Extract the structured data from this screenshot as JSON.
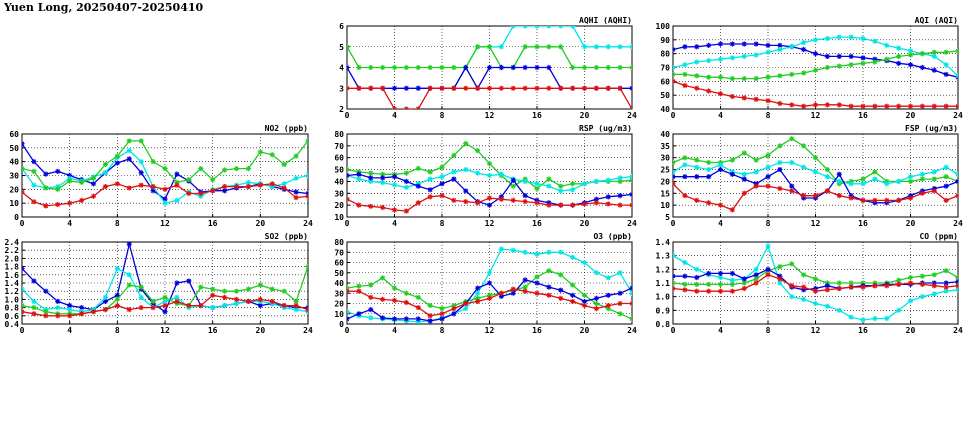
{
  "page": {
    "title": "Yuen Long, 20250407-20250410"
  },
  "colors": {
    "red": "#dd1111",
    "blue": "#0000dd",
    "cyan": "#00e5e5",
    "green": "#22cc22"
  },
  "chart_data": [
    {
      "id": "no2",
      "type": "line",
      "title": "NO2 (ppb)",
      "xlim": [
        0,
        24
      ],
      "ylim": [
        0,
        60
      ],
      "xticks": [
        0,
        4,
        8,
        12,
        16,
        20,
        24
      ],
      "yticks": [
        0,
        10,
        20,
        30,
        40,
        50,
        60
      ],
      "grid": true,
      "series": [
        {
          "color": "blue",
          "values": [
            53,
            40,
            31,
            33,
            30,
            27,
            24,
            32,
            39,
            42,
            32,
            19,
            13,
            31,
            26,
            18,
            19,
            19,
            21,
            22,
            24,
            22,
            20,
            18,
            17
          ]
        },
        {
          "color": "cyan",
          "values": [
            35,
            23,
            21,
            22,
            28,
            26,
            29,
            32,
            43,
            48,
            40,
            22,
            10,
            12,
            18,
            15,
            20,
            22,
            23,
            25,
            24,
            22,
            24,
            28,
            30
          ]
        },
        {
          "color": "green",
          "values": [
            35,
            33,
            21,
            20,
            26,
            25,
            28,
            38,
            44,
            55,
            55,
            40,
            35,
            25,
            27,
            35,
            27,
            34,
            35,
            35,
            47,
            45,
            38,
            44,
            55
          ]
        },
        {
          "color": "red",
          "values": [
            18,
            11,
            8,
            9,
            10,
            12,
            15,
            22,
            24,
            21,
            23,
            22,
            20,
            23,
            17,
            17,
            19,
            22,
            22,
            22,
            23,
            24,
            21,
            14,
            15
          ]
        }
      ]
    },
    {
      "id": "so2",
      "type": "line",
      "title": "SO2 (ppb)",
      "xlim": [
        0,
        24
      ],
      "ylim": [
        0.4,
        2.4
      ],
      "xticks": [
        0,
        4,
        8,
        12,
        16,
        20,
        24
      ],
      "yticks": [
        0.4,
        0.6,
        0.8,
        1.0,
        1.2,
        1.4,
        1.6,
        1.8,
        2.0,
        2.2,
        2.4
      ],
      "ytick_labels": [
        "0.4",
        "0.6",
        "0.8",
        "1.0",
        "1.2",
        "1.4",
        "1.6",
        "1.8",
        "2.0",
        "2.2",
        "2.4"
      ],
      "grid": true,
      "series": [
        {
          "color": "blue",
          "values": [
            1.75,
            1.45,
            1.2,
            0.95,
            0.85,
            0.8,
            0.75,
            0.95,
            1.1,
            2.35,
            1.25,
            0.9,
            0.7,
            1.4,
            1.45,
            0.85,
            0.8,
            0.85,
            0.9,
            0.95,
            0.85,
            0.9,
            0.85,
            0.8,
            0.8
          ]
        },
        {
          "color": "cyan",
          "values": [
            1.25,
            0.95,
            0.75,
            0.8,
            0.75,
            0.7,
            0.75,
            1.05,
            1.75,
            1.6,
            1.05,
            0.8,
            0.95,
            1.05,
            0.8,
            0.85,
            0.8,
            0.85,
            0.9,
            0.95,
            0.95,
            0.9,
            0.8,
            0.75,
            0.7
          ]
        },
        {
          "color": "green",
          "values": [
            0.85,
            0.8,
            0.7,
            0.65,
            0.65,
            0.65,
            0.7,
            0.75,
            1.0,
            1.35,
            1.3,
            0.95,
            1.05,
            0.9,
            0.85,
            1.3,
            1.25,
            1.2,
            1.2,
            1.25,
            1.35,
            1.25,
            1.2,
            0.95,
            1.8
          ]
        },
        {
          "color": "red",
          "values": [
            0.7,
            0.65,
            0.6,
            0.6,
            0.6,
            0.65,
            0.7,
            0.75,
            0.85,
            0.75,
            0.8,
            0.8,
            0.85,
            0.95,
            0.85,
            0.85,
            1.1,
            1.05,
            1.0,
            0.95,
            1.0,
            0.95,
            0.85,
            0.85,
            0.75
          ]
        }
      ]
    },
    {
      "id": "aqhi",
      "type": "line",
      "title": "AQHI (AQHI)",
      "xlim": [
        0,
        24
      ],
      "ylim": [
        2,
        6
      ],
      "xticks": [
        0,
        4,
        8,
        12,
        16,
        20,
        24
      ],
      "yticks": [
        2,
        3,
        4,
        5,
        6
      ],
      "grid": true,
      "series": [
        {
          "color": "cyan",
          "values": [
            null,
            null,
            null,
            null,
            null,
            null,
            3,
            3,
            3,
            3,
            4,
            5,
            5,
            5,
            6,
            6,
            6,
            6,
            6,
            6,
            5,
            5,
            5,
            5,
            5
          ]
        },
        {
          "color": "green",
          "values": [
            5,
            4,
            4,
            4,
            4,
            4,
            4,
            4,
            4,
            4,
            4,
            5,
            5,
            4,
            4,
            5,
            5,
            5,
            5,
            4,
            4,
            4,
            4,
            4,
            4
          ]
        },
        {
          "color": "blue",
          "values": [
            4,
            3,
            3,
            3,
            3,
            3,
            3,
            3,
            3,
            3,
            4,
            3,
            4,
            4,
            4,
            4,
            4,
            4,
            3,
            3,
            3,
            3,
            3,
            3,
            3
          ]
        },
        {
          "color": "red",
          "values": [
            3,
            3,
            3,
            3,
            2,
            2,
            2,
            3,
            3,
            3,
            3,
            3,
            3,
            3,
            3,
            3,
            3,
            3,
            3,
            3,
            3,
            3,
            3,
            3,
            2
          ]
        }
      ]
    },
    {
      "id": "rsp",
      "type": "line",
      "title": "RSP (ug/m3)",
      "xlim": [
        0,
        24
      ],
      "ylim": [
        10,
        80
      ],
      "xticks": [
        0,
        4,
        8,
        12,
        16,
        20,
        24
      ],
      "yticks": [
        10,
        20,
        30,
        40,
        50,
        60,
        70,
        80
      ],
      "grid": true,
      "series": [
        {
          "color": "green",
          "values": [
            50,
            48,
            47,
            46,
            46,
            47,
            51,
            48,
            52,
            62,
            72,
            66,
            55,
            45,
            36,
            42,
            34,
            42,
            36,
            38,
            38,
            40,
            40,
            40,
            41
          ]
        },
        {
          "color": "cyan",
          "values": [
            45,
            42,
            40,
            39,
            37,
            35,
            38,
            42,
            44,
            48,
            50,
            47,
            45,
            46,
            42,
            40,
            38,
            36,
            32,
            33,
            38,
            40,
            41,
            43,
            44
          ]
        },
        {
          "color": "blue",
          "values": [
            45,
            46,
            43,
            43,
            44,
            40,
            36,
            33,
            38,
            42,
            32,
            23,
            20,
            27,
            41,
            28,
            24,
            22,
            20,
            20,
            22,
            25,
            27,
            28,
            29
          ]
        },
        {
          "color": "red",
          "values": [
            25,
            20,
            19,
            18,
            16,
            15,
            22,
            27,
            28,
            24,
            23,
            22,
            26,
            25,
            24,
            23,
            22,
            20,
            20,
            20,
            21,
            22,
            21,
            20,
            20
          ]
        }
      ]
    },
    {
      "id": "o3",
      "type": "line",
      "title": "O3 (ppb)",
      "xlim": [
        0,
        24
      ],
      "ylim": [
        0,
        80
      ],
      "xticks": [
        0,
        4,
        8,
        12,
        16,
        20,
        24
      ],
      "yticks": [
        0,
        10,
        20,
        30,
        40,
        50,
        60,
        70,
        80
      ],
      "grid": true,
      "series": [
        {
          "color": "cyan",
          "values": [
            12,
            8,
            6,
            5,
            4,
            3,
            2,
            3,
            6,
            10,
            15,
            30,
            50,
            73,
            72,
            70,
            68,
            70,
            70,
            65,
            60,
            50,
            45,
            50,
            30
          ]
        },
        {
          "color": "green",
          "values": [
            35,
            37,
            38,
            45,
            35,
            30,
            26,
            18,
            15,
            18,
            22,
            25,
            28,
            30,
            33,
            36,
            46,
            52,
            48,
            38,
            28,
            20,
            15,
            10,
            5
          ]
        },
        {
          "color": "blue",
          "values": [
            5,
            10,
            14,
            6,
            5,
            5,
            5,
            3,
            5,
            10,
            20,
            35,
            40,
            27,
            30,
            43,
            40,
            36,
            33,
            28,
            22,
            25,
            28,
            30,
            35
          ]
        },
        {
          "color": "red",
          "values": [
            32,
            32,
            26,
            24,
            23,
            21,
            16,
            8,
            10,
            15,
            20,
            22,
            25,
            30,
            34,
            32,
            30,
            28,
            25,
            22,
            18,
            15,
            18,
            20,
            20
          ]
        }
      ]
    },
    {
      "id": "aqi",
      "type": "line",
      "title": "AQI (AQI)",
      "xlim": [
        0,
        24
      ],
      "ylim": [
        40,
        100
      ],
      "xticks": [
        0,
        4,
        8,
        12,
        16,
        20,
        24
      ],
      "yticks": [
        40,
        50,
        60,
        70,
        80,
        90,
        100
      ],
      "grid": true,
      "series": [
        {
          "color": "blue",
          "values": [
            83,
            85,
            85,
            86,
            87,
            87,
            87,
            87,
            86,
            86,
            85,
            83,
            80,
            78,
            78,
            78,
            77,
            76,
            75,
            73,
            72,
            70,
            68,
            65,
            63
          ]
        },
        {
          "color": "cyan",
          "values": [
            70,
            72,
            74,
            75,
            76,
            77,
            78,
            79,
            81,
            83,
            85,
            88,
            90,
            91,
            92,
            92,
            91,
            89,
            86,
            84,
            82,
            80,
            78,
            72,
            64
          ]
        },
        {
          "color": "green",
          "values": [
            65,
            65,
            64,
            63,
            63,
            62,
            62,
            62,
            63,
            64,
            65,
            66,
            68,
            70,
            71,
            72,
            73,
            74,
            76,
            78,
            79,
            80,
            81,
            81,
            82
          ]
        },
        {
          "color": "red",
          "values": [
            60,
            57,
            55,
            53,
            51,
            49,
            48,
            47,
            46,
            44,
            43,
            42,
            43,
            43,
            43,
            42,
            42,
            42,
            42,
            42,
            42,
            42,
            42,
            42,
            42
          ]
        }
      ]
    },
    {
      "id": "fsp",
      "type": "line",
      "title": "FSP (ug/m3)",
      "xlim": [
        0,
        24
      ],
      "ylim": [
        5,
        40
      ],
      "xticks": [
        0,
        4,
        8,
        12,
        16,
        20,
        24
      ],
      "yticks": [
        5,
        10,
        15,
        20,
        25,
        30,
        35,
        40
      ],
      "grid": true,
      "series": [
        {
          "color": "green",
          "values": [
            28,
            30,
            29,
            28,
            28,
            29,
            32,
            29,
            31,
            35,
            38,
            35,
            30,
            25,
            19,
            20,
            21,
            24,
            20,
            20,
            20,
            21,
            21,
            22,
            20
          ]
        },
        {
          "color": "cyan",
          "values": [
            24,
            27,
            26,
            25,
            27,
            24,
            23,
            24,
            26,
            28,
            28,
            26,
            24,
            22,
            20,
            19,
            19,
            21,
            19,
            20,
            22,
            23,
            24,
            26,
            23
          ]
        },
        {
          "color": "blue",
          "values": [
            22,
            22,
            22,
            22,
            25,
            23,
            21,
            19,
            22,
            25,
            18,
            13,
            13,
            16,
            23,
            14,
            12,
            11,
            11,
            12,
            14,
            16,
            17,
            18,
            20
          ]
        },
        {
          "color": "red",
          "values": [
            19,
            14,
            12,
            11,
            10,
            8,
            15,
            18,
            18,
            17,
            16,
            14,
            14,
            16,
            14,
            13,
            12,
            12,
            12,
            12,
            13,
            15,
            16,
            12,
            14
          ]
        }
      ]
    },
    {
      "id": "co",
      "type": "line",
      "title": "CO (ppm)",
      "xlim": [
        0,
        24
      ],
      "ylim": [
        0.8,
        1.4
      ],
      "xticks": [
        0,
        4,
        8,
        12,
        16,
        20,
        24
      ],
      "yticks": [
        0.8,
        0.9,
        1.0,
        1.1,
        1.2,
        1.3,
        1.4
      ],
      "ytick_labels": [
        "0.8",
        "0.9",
        "1.0",
        "1.1",
        "1.2",
        "1.3",
        "1.4"
      ],
      "grid": true,
      "series": [
        {
          "color": "cyan",
          "values": [
            1.3,
            1.25,
            1.2,
            1.16,
            1.14,
            1.12,
            1.13,
            1.2,
            1.37,
            1.1,
            1.0,
            0.98,
            0.95,
            0.93,
            0.9,
            0.85,
            0.83,
            0.84,
            0.84,
            0.9,
            0.97,
            1.0,
            1.02,
            1.04,
            1.05
          ]
        },
        {
          "color": "green",
          "values": [
            1.1,
            1.09,
            1.09,
            1.09,
            1.09,
            1.09,
            1.1,
            1.13,
            1.19,
            1.22,
            1.24,
            1.16,
            1.13,
            1.1,
            1.1,
            1.1,
            1.1,
            1.1,
            1.1,
            1.12,
            1.14,
            1.15,
            1.16,
            1.19,
            1.14
          ]
        },
        {
          "color": "blue",
          "values": [
            1.15,
            1.15,
            1.14,
            1.17,
            1.17,
            1.17,
            1.13,
            1.16,
            1.2,
            1.15,
            1.07,
            1.05,
            1.06,
            1.08,
            1.06,
            1.07,
            1.08,
            1.08,
            1.09,
            1.09,
            1.09,
            1.1,
            1.1,
            1.1,
            1.11
          ]
        },
        {
          "color": "red",
          "values": [
            1.06,
            1.05,
            1.04,
            1.04,
            1.04,
            1.04,
            1.06,
            1.1,
            1.16,
            1.13,
            1.08,
            1.07,
            1.04,
            1.05,
            1.06,
            1.07,
            1.07,
            1.08,
            1.08,
            1.09,
            1.1,
            1.09,
            1.08,
            1.07,
            1.08
          ]
        }
      ]
    }
  ]
}
